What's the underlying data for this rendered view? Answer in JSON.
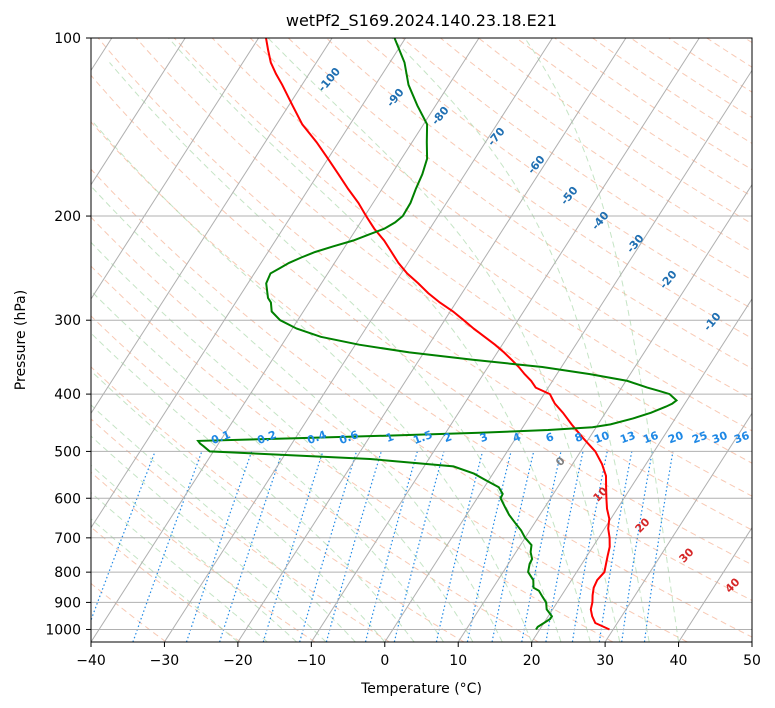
{
  "chart_data": {
    "type": "line",
    "title": "wetPf2_S169.2024.140.23.18.E21",
    "xlabel": "Temperature (°C)",
    "ylabel": "Pressure (hPa)",
    "xlim": [
      -40,
      50
    ],
    "ylim": [
      1050,
      100
    ],
    "y_scale": "log",
    "x_ticks": [
      -40,
      -30,
      -20,
      -10,
      0,
      10,
      20,
      30,
      40,
      50
    ],
    "x_tick_labels": [
      "−40",
      "−30",
      "−20",
      "−10",
      "0",
      "10",
      "20",
      "30",
      "40",
      "50"
    ],
    "y_ticks": [
      100,
      200,
      300,
      400,
      500,
      600,
      700,
      800,
      900,
      1000
    ],
    "y_tick_labels": [
      "100",
      "200",
      "300",
      "400",
      "500",
      "600",
      "700",
      "800",
      "900",
      "1000"
    ],
    "grid": true,
    "colors": {
      "temperature": "#ff0000",
      "dewpoint": "#008000",
      "isotherm": "#b0b0b0",
      "dry_adiabat": "#f4a582",
      "moist_adiabat": "#a6d6a6",
      "mixing_ratio": "#1e88e5",
      "dry_adiabat_label": "#1f6fb2",
      "moist_label": "#d62728",
      "freezing_label": "#808080"
    },
    "series": [
      {
        "key": "temperature",
        "p": [
          1000,
          990,
          975,
          950,
          925,
          900,
          875,
          850,
          825,
          800,
          775,
          750,
          725,
          700,
          675,
          650,
          625,
          600,
          575,
          550,
          525,
          500,
          475,
          450,
          430,
          415,
          400,
          390,
          380,
          370,
          360,
          350,
          340,
          330,
          320,
          310,
          300,
          290,
          280,
          270,
          260,
          250,
          240,
          230,
          220,
          210,
          200,
          190,
          180,
          170,
          160,
          150,
          140,
          130,
          120,
          115,
          110,
          105,
          100
        ],
        "t": [
          29.5,
          28.5,
          27.0,
          26.0,
          25.2,
          24.8,
          24.2,
          23.7,
          23.5,
          23.8,
          23.3,
          22.8,
          22.3,
          21.5,
          20.5,
          19.8,
          18.6,
          17.6,
          16.6,
          15.6,
          14.0,
          12.0,
          9.2,
          6.4,
          4.2,
          2.3,
          0.8,
          -1.7,
          -2.9,
          -4.4,
          -5.8,
          -7.4,
          -9.1,
          -11.0,
          -13.1,
          -15.3,
          -17.4,
          -19.6,
          -22.2,
          -24.6,
          -26.8,
          -29.2,
          -31.3,
          -33.2,
          -35.2,
          -37.6,
          -39.8,
          -42.0,
          -44.6,
          -47.2,
          -50.0,
          -53.0,
          -56.5,
          -59.5,
          -62.7,
          -64.5,
          -66.2,
          -67.6,
          -69.0
        ]
      },
      {
        "key": "dewpoint",
        "p": [
          1000,
          990,
          975,
          960,
          950,
          925,
          900,
          880,
          860,
          850,
          825,
          800,
          775,
          760,
          740,
          720,
          700,
          680,
          660,
          640,
          620,
          600,
          590,
          575,
          560,
          545,
          530,
          515,
          500,
          490,
          485,
          480,
          475,
          470,
          465,
          460,
          455,
          450,
          440,
          430,
          420,
          415,
          410,
          400,
          395,
          390,
          380,
          370,
          360,
          350,
          340,
          330,
          320,
          310,
          300,
          290,
          280,
          275,
          270,
          260,
          250,
          245,
          240,
          235,
          230,
          225,
          220,
          215,
          210,
          205,
          200,
          190,
          180,
          170,
          160,
          150,
          140,
          130,
          120,
          110,
          100
        ],
        "td": [
          19.5,
          19.5,
          20.0,
          20.5,
          20.5,
          19.2,
          18.5,
          17.5,
          16.5,
          15.5,
          14.8,
          13.4,
          12.9,
          12.8,
          12.0,
          11.5,
          10.0,
          8.8,
          7.3,
          5.8,
          4.5,
          3.2,
          3.1,
          2.0,
          -0.3,
          -2.6,
          -6.0,
          -18.0,
          -40.5,
          -41.8,
          -42.5,
          -43.0,
          -30.0,
          -17.0,
          -5.4,
          3.7,
          9.5,
          11.7,
          14.2,
          16.2,
          17.7,
          18.3,
          18.6,
          17.1,
          15.4,
          13.5,
          10.2,
          4.5,
          -2.6,
          -12.7,
          -22.0,
          -29.5,
          -35.4,
          -39.4,
          -42.4,
          -44.3,
          -45.2,
          -46.0,
          -46.5,
          -47.5,
          -47.8,
          -47.0,
          -46.2,
          -45.0,
          -43.6,
          -41.6,
          -39.4,
          -37.8,
          -36.2,
          -35.3,
          -34.8,
          -34.9,
          -35.4,
          -35.8,
          -36.5,
          -38.0,
          -39.5,
          -42.5,
          -45.5,
          -48.0,
          -51.5
        ]
      }
    ],
    "dry_adiabat_labels": [
      "-100",
      "-90",
      "-80",
      "-70",
      "-60",
      "-50",
      "-40",
      "-30",
      "-20",
      "-10"
    ],
    "mixing_ratio_labels": [
      "0.1",
      "0.2",
      "0.4",
      "0.6",
      "1",
      "1.5",
      "2",
      "3",
      "4",
      "6",
      "8",
      "10",
      "13",
      "16",
      "20",
      "25",
      "30",
      "36"
    ],
    "moist_adiabat_labels": [
      "0",
      "10",
      "20",
      "30",
      "40"
    ]
  }
}
